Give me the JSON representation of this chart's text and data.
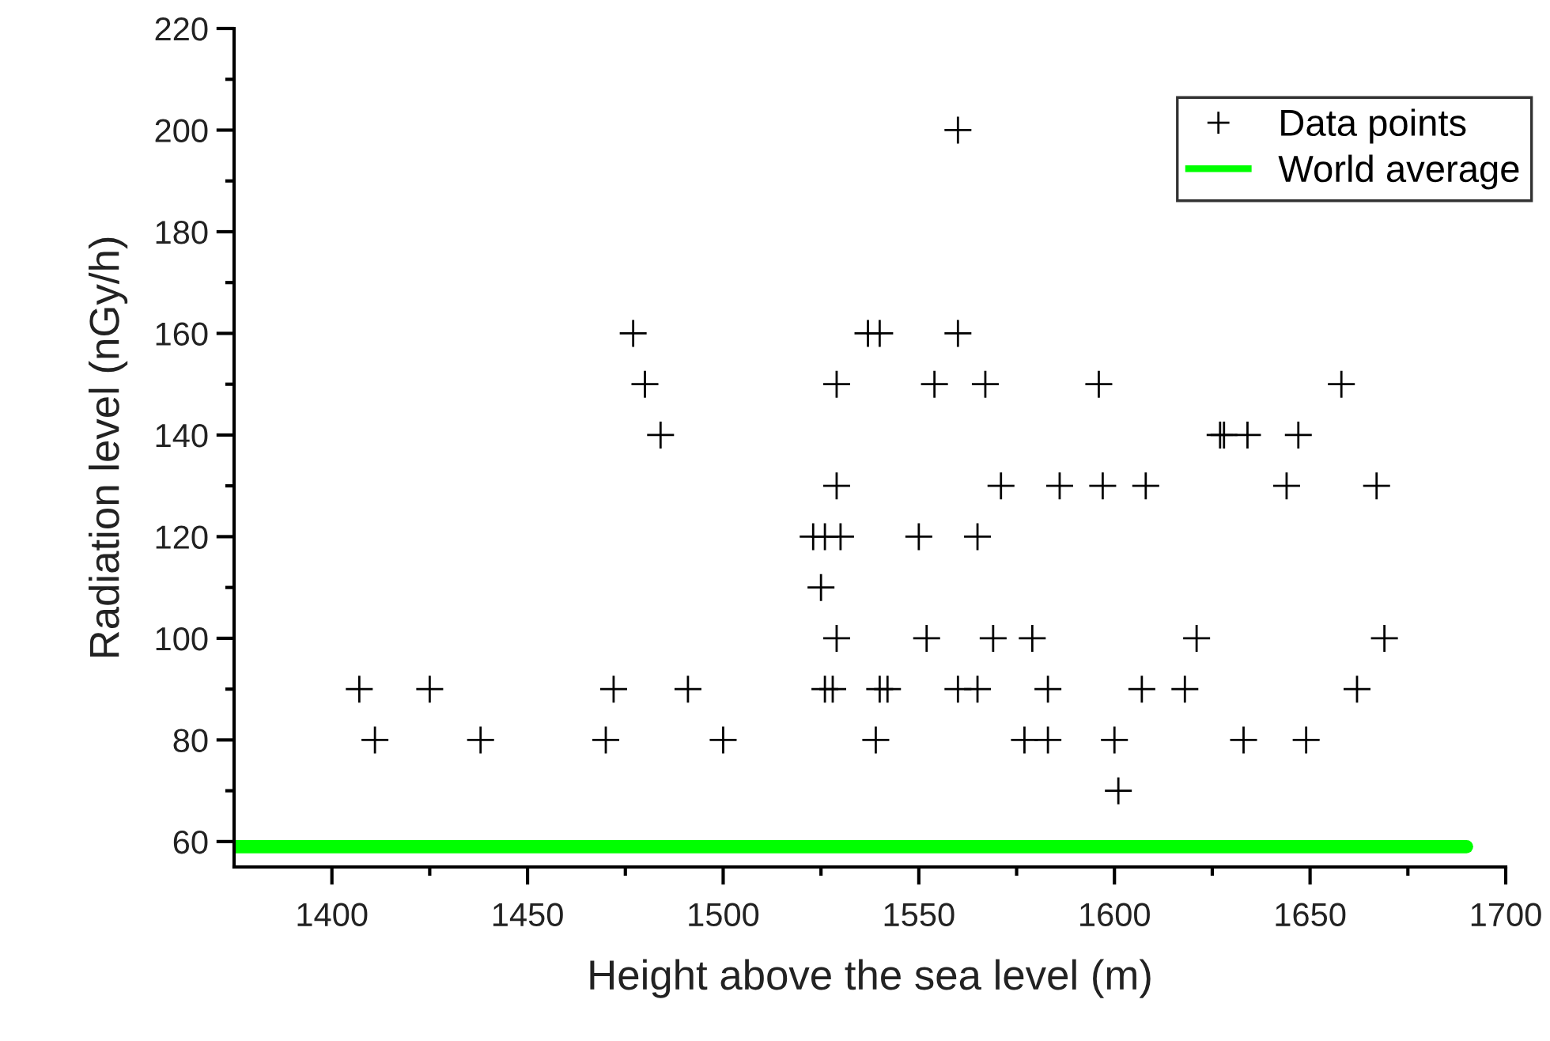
{
  "chart_data": {
    "type": "scatter",
    "xlabel": "Height above the sea level (m)",
    "ylabel": "Radiation level (nGy/h)",
    "xlim": [
      1375,
      1700
    ],
    "ylim": [
      55,
      220
    ],
    "xticks": [
      {
        "value": 1400,
        "label": "1400"
      },
      {
        "value": 1425,
        "label": null
      },
      {
        "value": 1450,
        "label": "1450"
      },
      {
        "value": 1475,
        "label": null
      },
      {
        "value": 1500,
        "label": "1500"
      },
      {
        "value": 1525,
        "label": null
      },
      {
        "value": 1550,
        "label": "1550"
      },
      {
        "value": 1575,
        "label": null
      },
      {
        "value": 1600,
        "label": "1600"
      },
      {
        "value": 1625,
        "label": null
      },
      {
        "value": 1650,
        "label": "1650"
      },
      {
        "value": 1675,
        "label": null
      },
      {
        "value": 1700,
        "label": "1700"
      }
    ],
    "yticks": [
      {
        "value": 60,
        "label": "60"
      },
      {
        "value": 70,
        "label": null
      },
      {
        "value": 80,
        "label": "80"
      },
      {
        "value": 90,
        "label": null
      },
      {
        "value": 100,
        "label": "100"
      },
      {
        "value": 110,
        "label": null
      },
      {
        "value": 120,
        "label": "120"
      },
      {
        "value": 130,
        "label": null
      },
      {
        "value": 140,
        "label": "140"
      },
      {
        "value": 150,
        "label": null
      },
      {
        "value": 160,
        "label": "160"
      },
      {
        "value": 170,
        "label": null
      },
      {
        "value": 180,
        "label": "180"
      },
      {
        "value": 190,
        "label": null
      },
      {
        "value": 200,
        "label": "200"
      },
      {
        "value": 210,
        "label": null
      },
      {
        "value": 220,
        "label": "220"
      }
    ],
    "grid": false,
    "legend": "top right",
    "marker": "cross",
    "series": [
      {
        "name": "Data points",
        "color": "#000000",
        "x": [
          1407,
          1425,
          1472,
          1491,
          1526,
          1528,
          1540,
          1542,
          1560,
          1565,
          1583,
          1607,
          1618,
          1662,
          1411,
          1438,
          1470,
          1500,
          1539,
          1577,
          1583,
          1600,
          1633,
          1649,
          1601,
          1529,
          1552,
          1569,
          1579,
          1621,
          1669,
          1525,
          1523,
          1526,
          1530,
          1550,
          1565,
          1529,
          1571,
          1586,
          1597,
          1608,
          1644,
          1667,
          1484,
          1627,
          1628,
          1634,
          1647,
          1480,
          1529,
          1554,
          1567,
          1596,
          1658,
          1477,
          1537,
          1540,
          1560,
          1560
        ],
        "values": [
          90,
          90,
          90,
          90,
          90,
          90,
          90,
          90,
          90,
          90,
          90,
          90,
          90,
          90,
          80,
          80,
          80,
          80,
          80,
          80,
          80,
          80,
          80,
          80,
          70,
          100,
          100,
          100,
          100,
          100,
          100,
          110,
          120,
          120,
          120,
          120,
          120,
          130,
          130,
          130,
          130,
          130,
          130,
          130,
          140,
          140,
          140,
          140,
          140,
          150,
          150,
          150,
          150,
          150,
          150,
          160,
          160,
          160,
          160,
          200
        ]
      },
      {
        "name": "World average",
        "type": "line",
        "color": "#00ff00",
        "marker": "none",
        "line_style": "solid",
        "x": [
          1375,
          1690
        ],
        "values": [
          59,
          59
        ]
      }
    ]
  }
}
